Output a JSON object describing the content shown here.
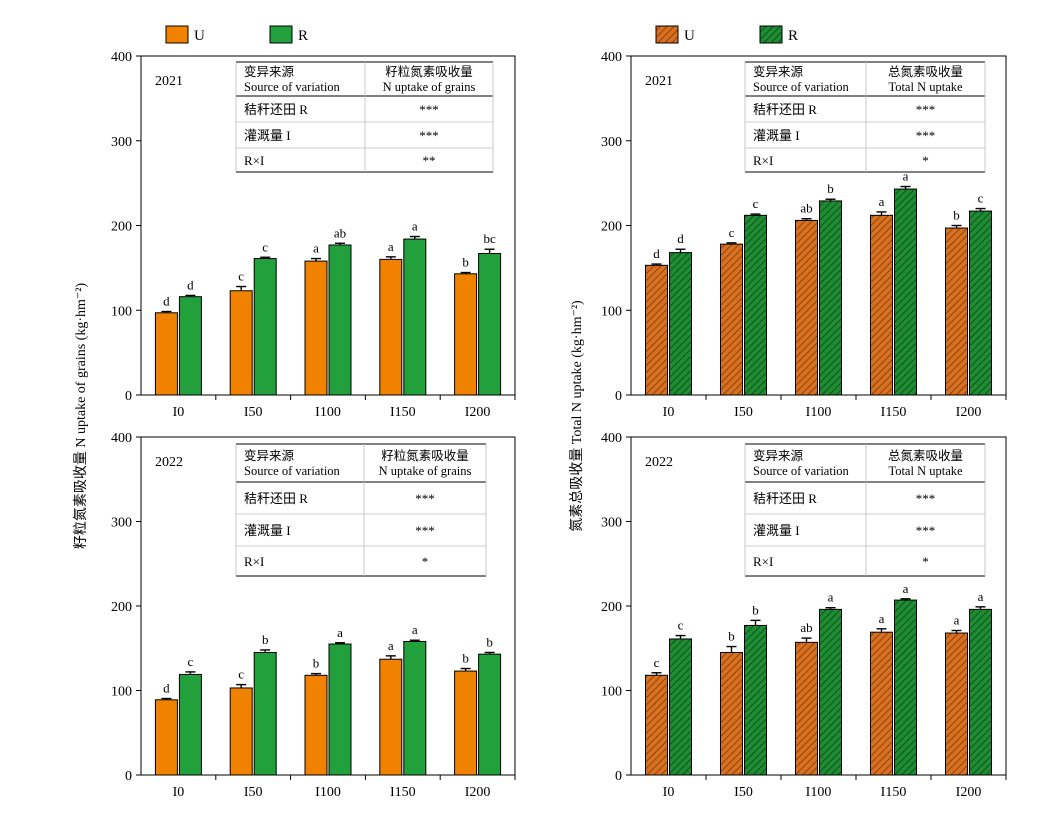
{
  "legend_left": {
    "items": [
      {
        "label": "U",
        "color": "#F08200"
      },
      {
        "label": "R",
        "color": "#21A03C"
      }
    ],
    "hatched": false
  },
  "legend_right": {
    "items": [
      {
        "label": "U",
        "color": "#D9701F"
      },
      {
        "label": "R",
        "color": "#1E8C32"
      }
    ],
    "hatched": true
  },
  "ylabel_left": "籽粒氮素吸收量 N uptake of grains (kg·hm⁻²)",
  "ylabel_right": "氮素总吸收量 Total N uptake (kg·hm⁻²)",
  "colors": {
    "U": "#F08200",
    "R": "#21A03C",
    "U_hatched": "#D9701F",
    "R_hatched": "#1E8C32"
  },
  "chart_data": [
    {
      "type": "bar",
      "panel": "top-left",
      "hatched": false,
      "year_label": "2021",
      "categories": [
        "I0",
        "I50",
        "I100",
        "I150",
        "I200"
      ],
      "ylim": [
        0,
        400
      ],
      "yticks": [
        0,
        100,
        200,
        300,
        400
      ],
      "series": [
        {
          "name": "U",
          "values": [
            97,
            123,
            158,
            160,
            143
          ],
          "errors": [
            1.5,
            5,
            3,
            3,
            1.5
          ],
          "letters": [
            "d",
            "c",
            "a",
            "a",
            "b"
          ]
        },
        {
          "name": "R",
          "values": [
            116,
            161,
            177,
            184,
            167
          ],
          "errors": [
            1.5,
            1.5,
            2,
            3,
            5
          ],
          "letters": [
            "d",
            "c",
            "ab",
            "a",
            "bc"
          ]
        }
      ],
      "table": {
        "header": [
          [
            "变异来源",
            "Source of variation"
          ],
          [
            "籽粒氮素吸收量",
            "N uptake of grains"
          ]
        ],
        "rows": [
          [
            "秸秆还田 R",
            "***"
          ],
          [
            "灌溉量 I",
            "***"
          ],
          [
            "R×I",
            "**"
          ]
        ]
      }
    },
    {
      "type": "bar",
      "panel": "top-right",
      "hatched": true,
      "year_label": "2021",
      "categories": [
        "I0",
        "I50",
        "I100",
        "I150",
        "I200"
      ],
      "ylim": [
        0,
        400
      ],
      "yticks": [
        0,
        100,
        200,
        300,
        400
      ],
      "series": [
        {
          "name": "U",
          "values": [
            153,
            178,
            206,
            212,
            197
          ],
          "errors": [
            1.5,
            1.5,
            2,
            4,
            3
          ],
          "letters": [
            "d",
            "c",
            "ab",
            "a",
            "b"
          ]
        },
        {
          "name": "R",
          "values": [
            168,
            212,
            229,
            243,
            217
          ],
          "errors": [
            4,
            1.5,
            2,
            3,
            3
          ],
          "letters": [
            "d",
            "c",
            "b",
            "a",
            "c"
          ]
        }
      ],
      "table": {
        "header": [
          [
            "变异来源",
            "Source of variation"
          ],
          [
            "总氮素吸收量",
            "Total N uptake"
          ]
        ],
        "rows": [
          [
            "秸秆还田 R",
            "***"
          ],
          [
            "灌溉量 I",
            "***"
          ],
          [
            "R×I",
            "*"
          ]
        ]
      }
    },
    {
      "type": "bar",
      "panel": "bottom-left",
      "hatched": false,
      "year_label": "2022",
      "categories": [
        "I0",
        "I50",
        "I100",
        "I150",
        "I200"
      ],
      "ylim": [
        0,
        400
      ],
      "yticks": [
        0,
        100,
        200,
        300,
        400
      ],
      "series": [
        {
          "name": "U",
          "values": [
            89,
            103,
            118,
            137,
            123
          ],
          "errors": [
            1.5,
            4,
            2,
            4,
            3
          ],
          "letters": [
            "d",
            "c",
            "b",
            "a",
            "b"
          ]
        },
        {
          "name": "R",
          "values": [
            119,
            145,
            155,
            158,
            143
          ],
          "errors": [
            3,
            3,
            1.5,
            1.5,
            2
          ],
          "letters": [
            "c",
            "b",
            "a",
            "a",
            "b"
          ]
        }
      ],
      "table": {
        "header": [
          [
            "变异来源",
            "Source of variation"
          ],
          [
            "籽粒氮素吸收量",
            "N uptake of grains"
          ]
        ],
        "rows": [
          [
            "秸秆还田 R",
            "***"
          ],
          [
            "灌溉量 I",
            "***"
          ],
          [
            "R×I",
            "*"
          ]
        ]
      }
    },
    {
      "type": "bar",
      "panel": "bottom-right",
      "hatched": true,
      "year_label": "2022",
      "categories": [
        "I0",
        "I50",
        "I100",
        "I150",
        "I200"
      ],
      "ylim": [
        0,
        400
      ],
      "yticks": [
        0,
        100,
        200,
        300,
        400
      ],
      "series": [
        {
          "name": "U",
          "values": [
            118,
            145,
            157,
            169,
            168
          ],
          "errors": [
            3,
            7,
            5,
            4,
            3
          ],
          "letters": [
            "c",
            "b",
            "ab",
            "a",
            "a"
          ]
        },
        {
          "name": "R",
          "values": [
            161,
            177,
            196,
            207,
            196
          ],
          "errors": [
            4,
            6,
            2,
            1.5,
            3
          ],
          "letters": [
            "c",
            "b",
            "a",
            "a",
            "a"
          ]
        }
      ],
      "table": {
        "header": [
          [
            "变异来源",
            "Source of variation"
          ],
          [
            "总氮素吸收量",
            "Total N uptake"
          ]
        ],
        "rows": [
          [
            "秸秆还田 R",
            "***"
          ],
          [
            "灌溉量 I",
            "***"
          ],
          [
            "R×I",
            "*"
          ]
        ]
      }
    }
  ]
}
